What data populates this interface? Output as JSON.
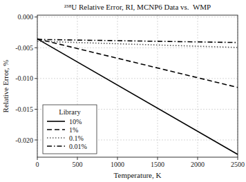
{
  "chart_data": {
    "type": "line",
    "title": "²³⁸U Relative Error, RI, MCNP6 Data vs.  WMP",
    "x_label": "Temperature, K",
    "y_label": "Relative Error, %",
    "x": [
      0,
      2500
    ],
    "series": [
      {
        "name": "10%",
        "color": "#000000",
        "line_style": "solid",
        "values": [
          -0.00355,
          -0.02235
        ]
      },
      {
        "name": "1%",
        "color": "#000000",
        "line_style": "dashed",
        "values": [
          -0.00355,
          -0.01145
        ]
      },
      {
        "name": "0.1%",
        "color": "#555555",
        "line_style": "dotted",
        "values": [
          -0.00395,
          -0.00495
        ]
      },
      {
        "name": "0.01%",
        "color": "#000000",
        "line_style": "dashdot",
        "values": [
          -0.00365,
          -0.00415
        ]
      }
    ],
    "xlim": [
      0,
      2500
    ],
    "ylim": [
      -0.0228,
      0.0003
    ],
    "xticks": [
      0,
      500,
      1000,
      1500,
      2000,
      2500
    ],
    "yticks": [
      {
        "value": 0.0,
        "label": "0.000"
      },
      {
        "value": -0.005,
        "label": "-0.005"
      },
      {
        "value": -0.01,
        "label": "-0.010"
      },
      {
        "value": -0.015,
        "label": "-0.015"
      },
      {
        "value": -0.02,
        "label": "-0.020"
      }
    ],
    "grid": true,
    "legend": "lower left",
    "legend_title": "Library"
  }
}
